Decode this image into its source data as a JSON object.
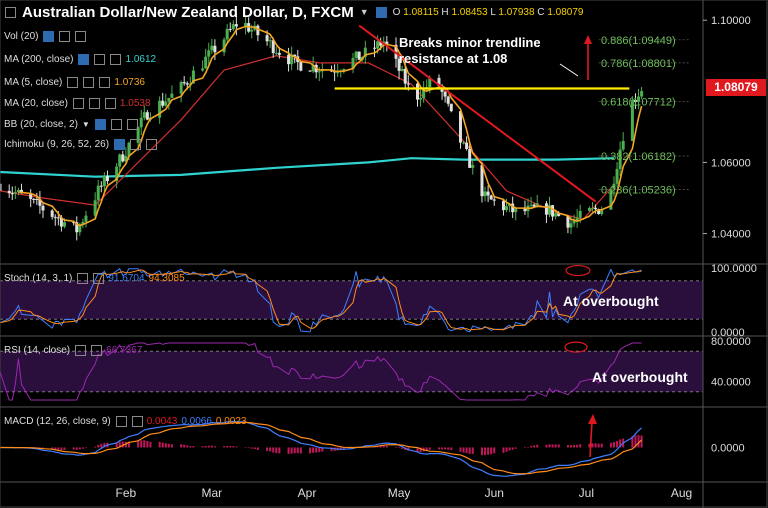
{
  "header": {
    "title": "Australian Dollar/New Zealand Dollar, D, FXCM",
    "open_label": "O",
    "open": "1.08115",
    "high_label": "H",
    "high": "1.08453",
    "low_label": "L",
    "low": "1.07938",
    "close_label": "C",
    "close": "1.08079"
  },
  "indicators": {
    "vol": "Vol (20)",
    "ma200": "MA (200, close)",
    "ma200_val": "1.0612",
    "ma5": "MA (5, close)",
    "ma5_val": "1.0736",
    "ma20": "MA (20, close)",
    "ma20_val": "1.0538",
    "bb": "BB (20, close, 2)",
    "ichimoku": "Ichimoku (9, 26, 52, 26)",
    "stoch": "Stoch (14, 3, 1)",
    "stoch_k": "91.6704",
    "stoch_d": "94.3085",
    "rsi": "RSI (14, close)",
    "rsi_val": "66.7367",
    "macd": "MACD (12, 26, close, 9)",
    "macd_hist": "0.0043",
    "macd_line": "0.0066",
    "macd_signal": "0.0023"
  },
  "annotations": {
    "trendline_break": "Breaks minor trendline\nresistance at 1.08",
    "stoch_note": "At overbought",
    "rsi_note": "At overbought"
  },
  "current_price_tag": "1.08079",
  "colors": {
    "background": "#000000",
    "candle_up": "#4caf50",
    "candle_down": "#e0e0e0",
    "ma200": "#2fd4d0",
    "ma5": "#f5a623",
    "ma20": "#d32f2f",
    "trendline": "#e0191f",
    "support": "#ffee00",
    "fib": "#6fbf5a",
    "stoch_k": "#3f7fff",
    "stoch_d": "#ff8c1a",
    "rsi": "#9c27b0",
    "oscillator_band": "#2a0f3d"
  },
  "chart_data": [
    {
      "type": "candlestick",
      "title": "Australian Dollar/New Zealand Dollar, D, FXCM",
      "x_tick_labels": [
        "Feb",
        "Mar",
        "Apr",
        "May",
        "Jun",
        "Jul",
        "Aug"
      ],
      "y_tick_labels": [
        "1.04000",
        "1.06000",
        "1.10000"
      ],
      "ylim": [
        1.032,
        1.104
      ],
      "x_range": [
        "Jan 1",
        "Aug 18"
      ],
      "legend": "top-left",
      "grid": false,
      "series": [
        {
          "name": "MA (200, close)",
          "x": [
            "Jan 1",
            "Feb 1",
            "Mar 1",
            "Apr 1",
            "May 1",
            "May 15",
            "Jun 1",
            "Jul 1",
            "Jul 20"
          ],
          "values": [
            1.0573,
            1.056,
            1.0565,
            1.0585,
            1.06,
            1.0612,
            1.0608,
            1.0608,
            1.0612
          ]
        },
        {
          "name": "MA (20, close)",
          "x": [
            "Jan 1",
            "Jan 15",
            "Feb 1",
            "Feb 15",
            "Mar 1",
            "Mar 15",
            "Apr 1",
            "Apr 15",
            "May 1",
            "May 15",
            "Jun 1",
            "Jun 15",
            "Jul 1",
            "Jul 10",
            "Jul 20"
          ],
          "values": [
            1.052,
            1.05,
            1.048,
            1.06,
            1.072,
            1.086,
            1.09,
            1.088,
            1.088,
            1.082,
            1.066,
            1.052,
            1.046,
            1.044,
            1.0538
          ]
        },
        {
          "name": "MA (5, close)",
          "x": [],
          "values": []
        }
      ],
      "candles": [],
      "trendline": {
        "from": [
          "Apr 28",
          1.0985
        ],
        "to": [
          "Jul 14",
          1.049
        ]
      },
      "support_line": {
        "value": 1.0808,
        "from": "Apr 20",
        "to": "Jul 25"
      },
      "fibonacci": [
        {
          "level": "0.886",
          "value": 1.09449
        },
        {
          "level": "0.786",
          "value": 1.08801
        },
        {
          "level": "0.618",
          "value": 1.07712
        },
        {
          "level": "0.382",
          "value": 1.06182
        },
        {
          "level": "0.236",
          "value": 1.05236
        }
      ],
      "last_price": 1.08079
    },
    {
      "type": "line",
      "title": "Stoch (14, 3, 1)",
      "y_tick_labels": [
        "100.0000",
        "0.0000"
      ],
      "ylim": [
        0,
        100
      ],
      "bands": [
        20,
        80
      ],
      "series": [
        {
          "name": "%K",
          "values": []
        },
        {
          "name": "%D",
          "values": []
        }
      ],
      "last_k": 91.6704,
      "last_d": 94.3085
    },
    {
      "type": "line",
      "title": "RSI (14, close)",
      "y_tick_labels": [
        "80.0000",
        "40.0000"
      ],
      "ylim": [
        20,
        80
      ],
      "bands": [
        30,
        70
      ],
      "series": [
        {
          "name": "RSI",
          "values": []
        }
      ],
      "last": 66.7367
    },
    {
      "type": "bar",
      "title": "MACD (12, 26, close, 9)",
      "y_tick_labels": [
        "0.0000"
      ],
      "ylim": [
        -0.011,
        0.013
      ],
      "series": [
        {
          "name": "Histogram",
          "values": []
        },
        {
          "name": "MACD",
          "values": []
        },
        {
          "name": "Signal",
          "values": []
        }
      ],
      "last_hist": 0.0043,
      "last_macd": 0.0066,
      "last_signal": 0.0023
    }
  ]
}
